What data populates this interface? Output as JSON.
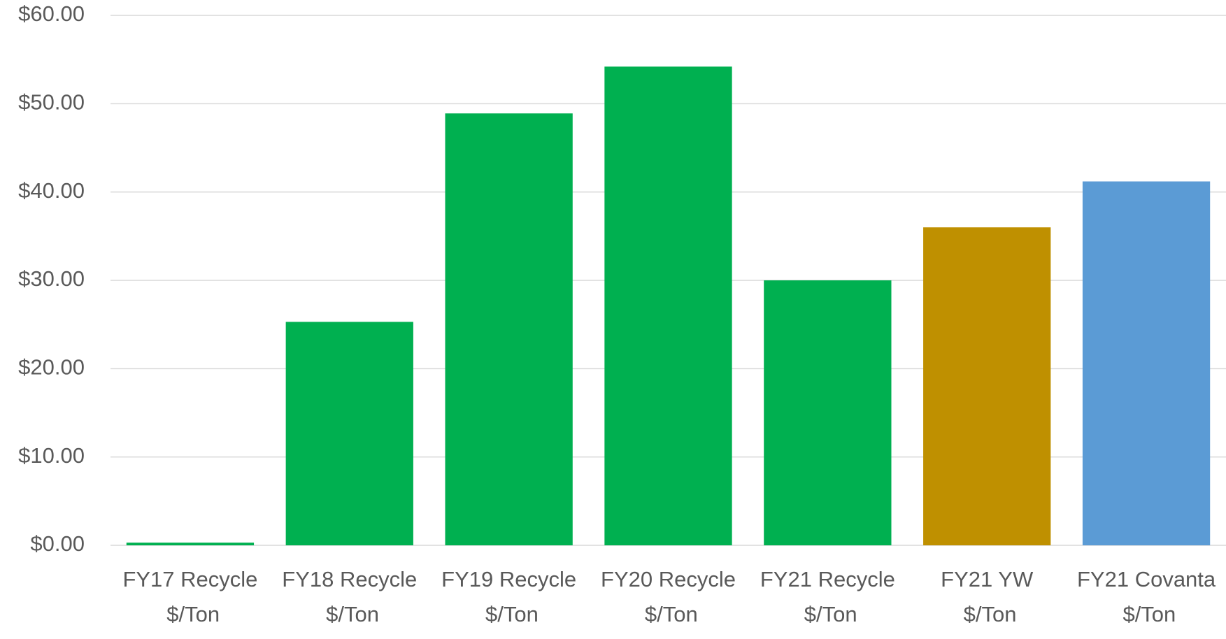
{
  "chart_data": {
    "type": "bar",
    "categories": [
      "FY17 Recycle\n$/Ton",
      "FY18 Recycle\n$/Ton",
      "FY19 Recycle\n$/Ton",
      "FY20 Recycle\n$/Ton",
      "FY21 Recycle\n$/Ton",
      "FY21 YW\n$/Ton",
      "FY21 Covanta\n$/Ton"
    ],
    "values": [
      0.3,
      25.3,
      48.9,
      54.2,
      30.0,
      36.0,
      41.2
    ],
    "colors": [
      "#00b050",
      "#00b050",
      "#00b050",
      "#00b050",
      "#00b050",
      "#bf9000",
      "#5b9bd5"
    ],
    "ylim": [
      0,
      60
    ],
    "yticks": [
      {
        "value": 0,
        "label": "$0.00"
      },
      {
        "value": 10,
        "label": "$10.00"
      },
      {
        "value": 20,
        "label": "$20.00"
      },
      {
        "value": 30,
        "label": "$30.00"
      },
      {
        "value": 40,
        "label": "$40.00"
      },
      {
        "value": 50,
        "label": "$50.00"
      },
      {
        "value": 60,
        "label": "$60.00"
      }
    ],
    "grid": true
  }
}
